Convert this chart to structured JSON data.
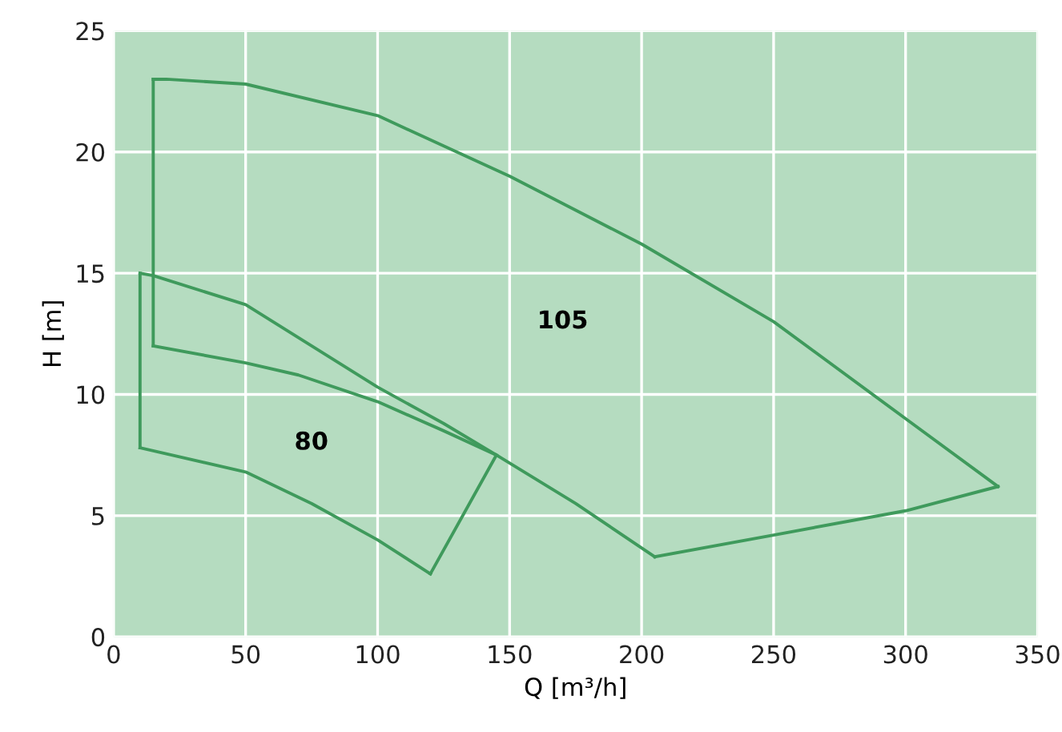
{
  "chart_data": {
    "type": "line",
    "xlabel": "Q [m³/h]",
    "ylabel": "H [m]",
    "xlim": [
      0,
      350
    ],
    "xticks": [
      0,
      50,
      100,
      150,
      200,
      250,
      300,
      350
    ],
    "ylim": [
      0,
      25
    ],
    "yticks": [
      0,
      5,
      10,
      15,
      20,
      25
    ],
    "grid": true,
    "marker": "none",
    "line_style": "solid",
    "series": [
      {
        "color": "#3f9a5c",
        "x": [
          10,
          15,
          50,
          100,
          125,
          145
        ],
        "values": [
          15,
          14.9,
          13.7,
          10.3,
          8.8,
          7.5
        ]
      },
      {
        "color": "#3f9a5c",
        "x": [
          120,
          145
        ],
        "values": [
          2.6,
          7.5
        ]
      },
      {
        "color": "#3f9a5c",
        "x": [
          10,
          50,
          75,
          100,
          120
        ],
        "values": [
          7.8,
          6.8,
          5.5,
          4.0,
          2.6
        ]
      },
      {
        "color": "#3f9a5c",
        "x": [
          10,
          10
        ],
        "values": [
          7.8,
          15
        ]
      },
      {
        "color": "#3f9a5c",
        "x": [
          15,
          20,
          50,
          100,
          150,
          200,
          250,
          300,
          335
        ],
        "values": [
          23,
          23,
          22.8,
          21.5,
          19,
          16.2,
          13,
          9,
          6.2
        ]
      },
      {
        "color": "#3f9a5c",
        "x": [
          205,
          250,
          300,
          335
        ],
        "values": [
          3.3,
          4.2,
          5.2,
          6.2
        ]
      },
      {
        "color": "#3f9a5c",
        "x": [
          15,
          50,
          70,
          100,
          125,
          145,
          175,
          205
        ],
        "values": [
          12,
          11.3,
          10.8,
          9.7,
          8.5,
          7.5,
          5.5,
          3.3
        ]
      },
      {
        "color": "#3f9a5c",
        "x": [
          15,
          15
        ],
        "values": [
          12,
          23
        ]
      }
    ],
    "annotations": [
      "80",
      "105"
    ]
  }
}
